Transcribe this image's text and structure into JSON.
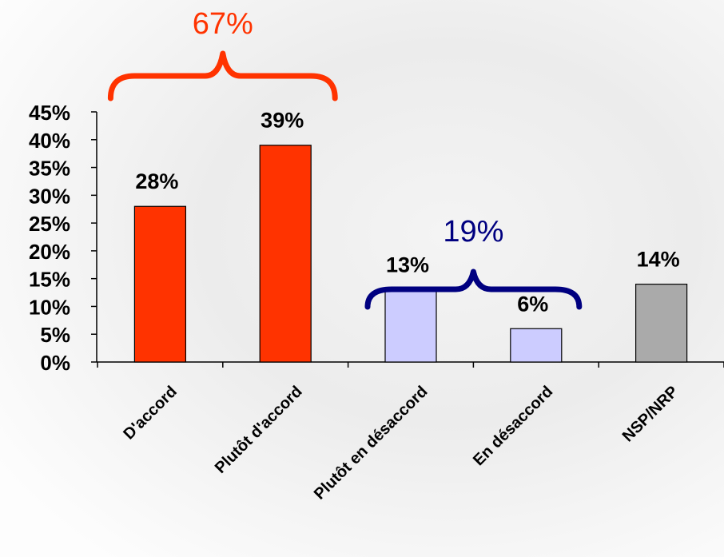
{
  "chart_data": {
    "type": "bar",
    "categories": [
      "D'accord",
      "Plutôt d'accord",
      "Plutôt en désaccord",
      "En désaccord",
      "NSP/NRP"
    ],
    "values": [
      28,
      39,
      13,
      6,
      14
    ],
    "value_labels": [
      "28%",
      "39%",
      "13%",
      "6%",
      "14%"
    ],
    "bar_colors": [
      "#ff3300",
      "#ff3300",
      "#ccccff",
      "#ccccff",
      "#aaaaaa"
    ],
    "ylim": [
      0,
      45
    ],
    "ytick_values": [
      0,
      5,
      10,
      15,
      20,
      25,
      30,
      35,
      40,
      45
    ],
    "yticks": [
      "0%",
      "5%",
      "10%",
      "15%",
      "20%",
      "25%",
      "30%",
      "35%",
      "40%",
      "45%"
    ],
    "grid": false,
    "legend": "none",
    "title": "",
    "xlabel": "",
    "ylabel": "",
    "group_annotations": [
      {
        "label": "67%",
        "categories": [
          0,
          1
        ],
        "color": "#ff3300"
      },
      {
        "label": "19%",
        "categories": [
          2,
          3
        ],
        "color": "#000080"
      }
    ]
  },
  "background": "#ffffff"
}
